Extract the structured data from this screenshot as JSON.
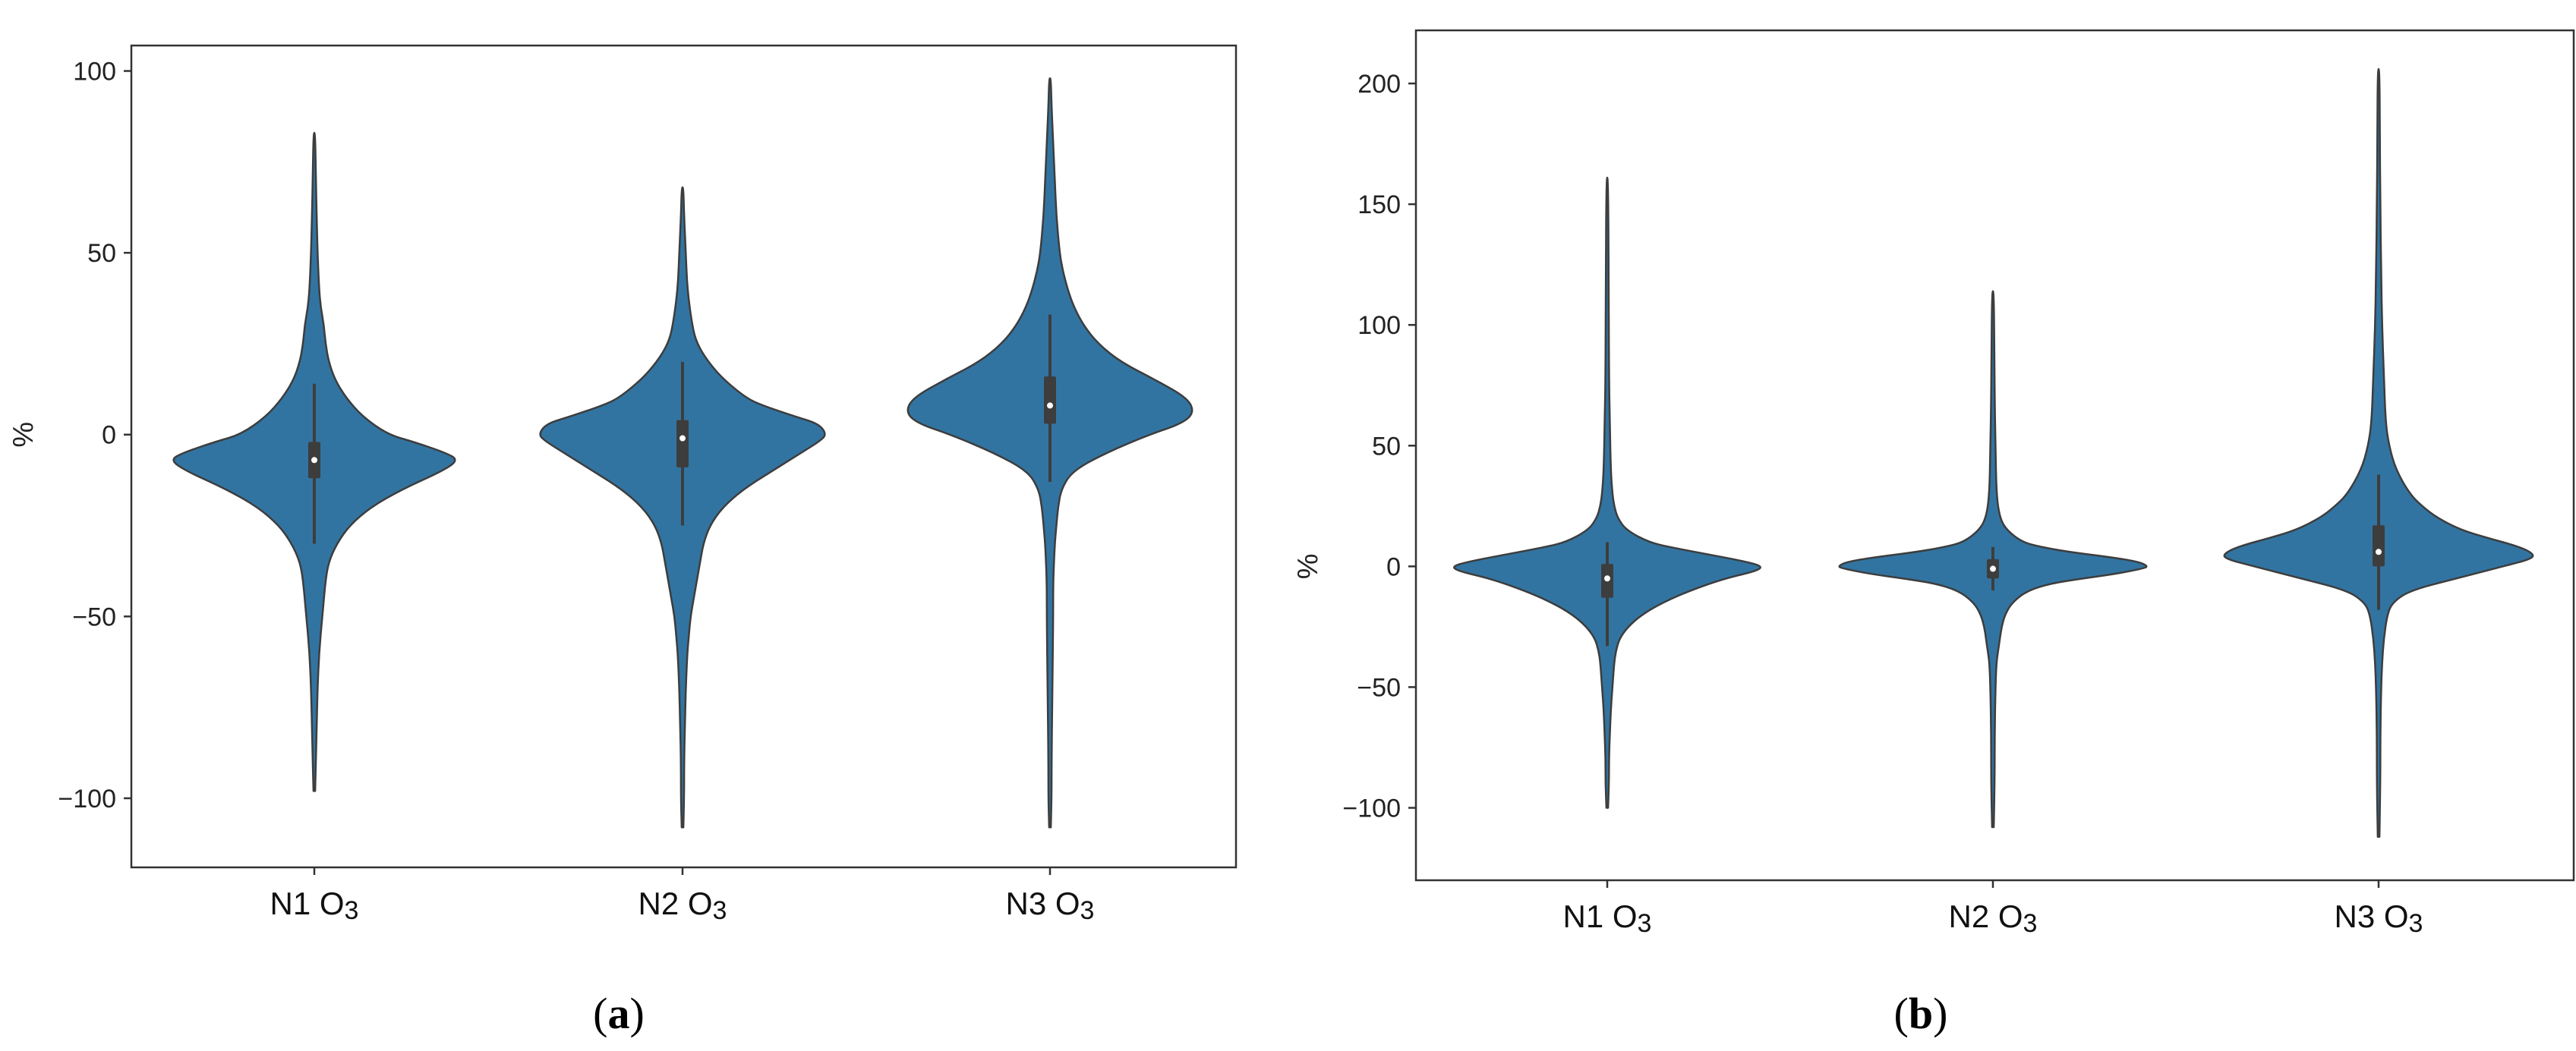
{
  "chart_data": [
    {
      "type": "violin",
      "panel_label": "(a)",
      "ylabel": "%",
      "ylim": [
        -119,
        107
      ],
      "yticks": [
        -100,
        -50,
        0,
        50,
        100
      ],
      "ytick_labels": [
        "−100",
        "−50",
        "0",
        "50",
        "100"
      ],
      "categories": [
        "N1 O3",
        "N2 O3",
        "N3 O3"
      ],
      "category_parts": [
        [
          "N1 O",
          "3"
        ],
        [
          "N2 O",
          "3"
        ],
        [
          "N3 O",
          "3"
        ]
      ],
      "grid": false,
      "color": "#3274a1",
      "violins": [
        {
          "category": "N1 O3",
          "min": -98,
          "max": 83,
          "q1": -12,
          "median": -7,
          "q3": -2,
          "whisker_low": -30,
          "whisker_high": 14,
          "density": [
            [
              -98,
              0.5
            ],
            [
              -90,
              1
            ],
            [
              -80,
              1.5
            ],
            [
              -70,
              2
            ],
            [
              -60,
              3
            ],
            [
              -50,
              5
            ],
            [
              -40,
              7
            ],
            [
              -35,
              9
            ],
            [
              -30,
              14
            ],
            [
              -25,
              22
            ],
            [
              -20,
              35
            ],
            [
              -15,
              55
            ],
            [
              -10,
              80
            ],
            [
              -7,
              90
            ],
            [
              -5,
              82
            ],
            [
              -2,
              62
            ],
            [
              0,
              46
            ],
            [
              5,
              30
            ],
            [
              10,
              20
            ],
            [
              15,
              13
            ],
            [
              20,
              9
            ],
            [
              25,
              7
            ],
            [
              30,
              6
            ],
            [
              35,
              4
            ],
            [
              40,
              3
            ],
            [
              50,
              2
            ],
            [
              60,
              1.5
            ],
            [
              70,
              1
            ],
            [
              83,
              0.5
            ]
          ]
        },
        {
          "category": "N2 O3",
          "min": -108,
          "max": 68,
          "q1": -9,
          "median": -1,
          "q3": 4,
          "whisker_low": -25,
          "whisker_high": 20,
          "density": [
            [
              -108,
              0.5
            ],
            [
              -100,
              1
            ],
            [
              -90,
              1
            ],
            [
              -80,
              1.5
            ],
            [
              -70,
              2
            ],
            [
              -60,
              3
            ],
            [
              -55,
              4
            ],
            [
              -50,
              5
            ],
            [
              -45,
              7
            ],
            [
              -40,
              9
            ],
            [
              -35,
              11
            ],
            [
              -30,
              13
            ],
            [
              -25,
              17
            ],
            [
              -20,
              25
            ],
            [
              -15,
              38
            ],
            [
              -10,
              56
            ],
            [
              -5,
              74
            ],
            [
              -2,
              85
            ],
            [
              0,
              90
            ],
            [
              3,
              85
            ],
            [
              5,
              70
            ],
            [
              8,
              50
            ],
            [
              10,
              40
            ],
            [
              15,
              26
            ],
            [
              20,
              16
            ],
            [
              25,
              9
            ],
            [
              30,
              6
            ],
            [
              40,
              3
            ],
            [
              50,
              2
            ],
            [
              60,
              1
            ],
            [
              68,
              0.5
            ]
          ]
        },
        {
          "category": "N3 O3",
          "min": -108,
          "max": 98,
          "q1": 3,
          "median": 8,
          "q3": 16,
          "whisker_low": -13,
          "whisker_high": 33,
          "density": [
            [
              -108,
              0.5
            ],
            [
              -100,
              1
            ],
            [
              -90,
              1
            ],
            [
              -70,
              1.5
            ],
            [
              -50,
              2
            ],
            [
              -40,
              2
            ],
            [
              -30,
              3
            ],
            [
              -25,
              4
            ],
            [
              -20,
              5
            ],
            [
              -15,
              7
            ],
            [
              -10,
              14
            ],
            [
              -5,
              35
            ],
            [
              0,
              62
            ],
            [
              3,
              82
            ],
            [
              6,
              90
            ],
            [
              10,
              86
            ],
            [
              15,
              66
            ],
            [
              20,
              44
            ],
            [
              25,
              30
            ],
            [
              30,
              21
            ],
            [
              35,
              15
            ],
            [
              40,
              11
            ],
            [
              45,
              8
            ],
            [
              50,
              6
            ],
            [
              60,
              4
            ],
            [
              70,
              3
            ],
            [
              80,
              2
            ],
            [
              90,
              1
            ],
            [
              98,
              0.5
            ]
          ]
        }
      ]
    },
    {
      "type": "violin",
      "panel_label": "(b)",
      "ylabel": "%",
      "ylim": [
        -130,
        222
      ],
      "yticks": [
        -100,
        -50,
        0,
        50,
        100,
        150,
        200
      ],
      "ytick_labels": [
        "−100",
        "−50",
        "0",
        "50",
        "100",
        "150",
        "200"
      ],
      "categories": [
        "N1 O3",
        "N2 O3",
        "N3 O3"
      ],
      "category_parts": [
        [
          "N1 O",
          "3"
        ],
        [
          "N2 O",
          "3"
        ],
        [
          "N3 O",
          "3"
        ]
      ],
      "grid": false,
      "color": "#3274a1",
      "violins": [
        {
          "category": "N1 O3",
          "min": -100,
          "max": 161,
          "q1": -13,
          "median": -5,
          "q3": 1,
          "whisker_low": -33,
          "whisker_high": 10,
          "density": [
            [
              -100,
              0.5
            ],
            [
              -90,
              1
            ],
            [
              -80,
              1
            ],
            [
              -70,
              1.5
            ],
            [
              -60,
              2
            ],
            [
              -50,
              3
            ],
            [
              -40,
              4
            ],
            [
              -35,
              5
            ],
            [
              -30,
              7
            ],
            [
              -25,
              12
            ],
            [
              -20,
              20
            ],
            [
              -15,
              32
            ],
            [
              -10,
              48
            ],
            [
              -5,
              68
            ],
            [
              -2,
              86
            ],
            [
              0,
              90
            ],
            [
              2,
              80
            ],
            [
              5,
              58
            ],
            [
              8,
              36
            ],
            [
              10,
              24
            ],
            [
              15,
              11
            ],
            [
              20,
              6
            ],
            [
              25,
              4
            ],
            [
              30,
              3
            ],
            [
              40,
              2
            ],
            [
              60,
              1.5
            ],
            [
              80,
              1
            ],
            [
              120,
              0.8
            ],
            [
              161,
              0.5
            ]
          ]
        },
        {
          "category": "N2 O3",
          "min": -108,
          "max": 114,
          "q1": -5,
          "median": -1,
          "q3": 3,
          "whisker_low": -10,
          "whisker_high": 8,
          "density": [
            [
              -108,
              0.5
            ],
            [
              -90,
              1
            ],
            [
              -70,
              1
            ],
            [
              -50,
              1.5
            ],
            [
              -40,
              2
            ],
            [
              -35,
              3
            ],
            [
              -30,
              4
            ],
            [
              -25,
              5
            ],
            [
              -20,
              7
            ],
            [
              -15,
              11
            ],
            [
              -10,
              20
            ],
            [
              -7,
              34
            ],
            [
              -5,
              52
            ],
            [
              -3,
              72
            ],
            [
              -1,
              86
            ],
            [
              0,
              90
            ],
            [
              2,
              84
            ],
            [
              4,
              66
            ],
            [
              6,
              44
            ],
            [
              8,
              28
            ],
            [
              10,
              17
            ],
            [
              15,
              8
            ],
            [
              20,
              4
            ],
            [
              30,
              2
            ],
            [
              50,
              1.5
            ],
            [
              70,
              1
            ],
            [
              90,
              0.8
            ],
            [
              114,
              0.5
            ]
          ]
        },
        {
          "category": "N3 O3",
          "min": -112,
          "max": 206,
          "q1": 0,
          "median": 6,
          "q3": 17,
          "whisker_low": -18,
          "whisker_high": 38,
          "density": [
            [
              -112,
              0.5
            ],
            [
              -90,
              1
            ],
            [
              -70,
              1
            ],
            [
              -50,
              1.5
            ],
            [
              -40,
              2
            ],
            [
              -30,
              3
            ],
            [
              -20,
              5
            ],
            [
              -15,
              8
            ],
            [
              -10,
              18
            ],
            [
              -5,
              45
            ],
            [
              0,
              72
            ],
            [
              3,
              88
            ],
            [
              5,
              90
            ],
            [
              8,
              82
            ],
            [
              12,
              62
            ],
            [
              15,
              48
            ],
            [
              20,
              34
            ],
            [
              25,
              25
            ],
            [
              30,
              18
            ],
            [
              40,
              10
            ],
            [
              50,
              6
            ],
            [
              60,
              4
            ],
            [
              80,
              3
            ],
            [
              100,
              2
            ],
            [
              120,
              1.5
            ],
            [
              150,
              1
            ],
            [
              180,
              0.7
            ],
            [
              206,
              0.5
            ]
          ]
        }
      ]
    }
  ]
}
